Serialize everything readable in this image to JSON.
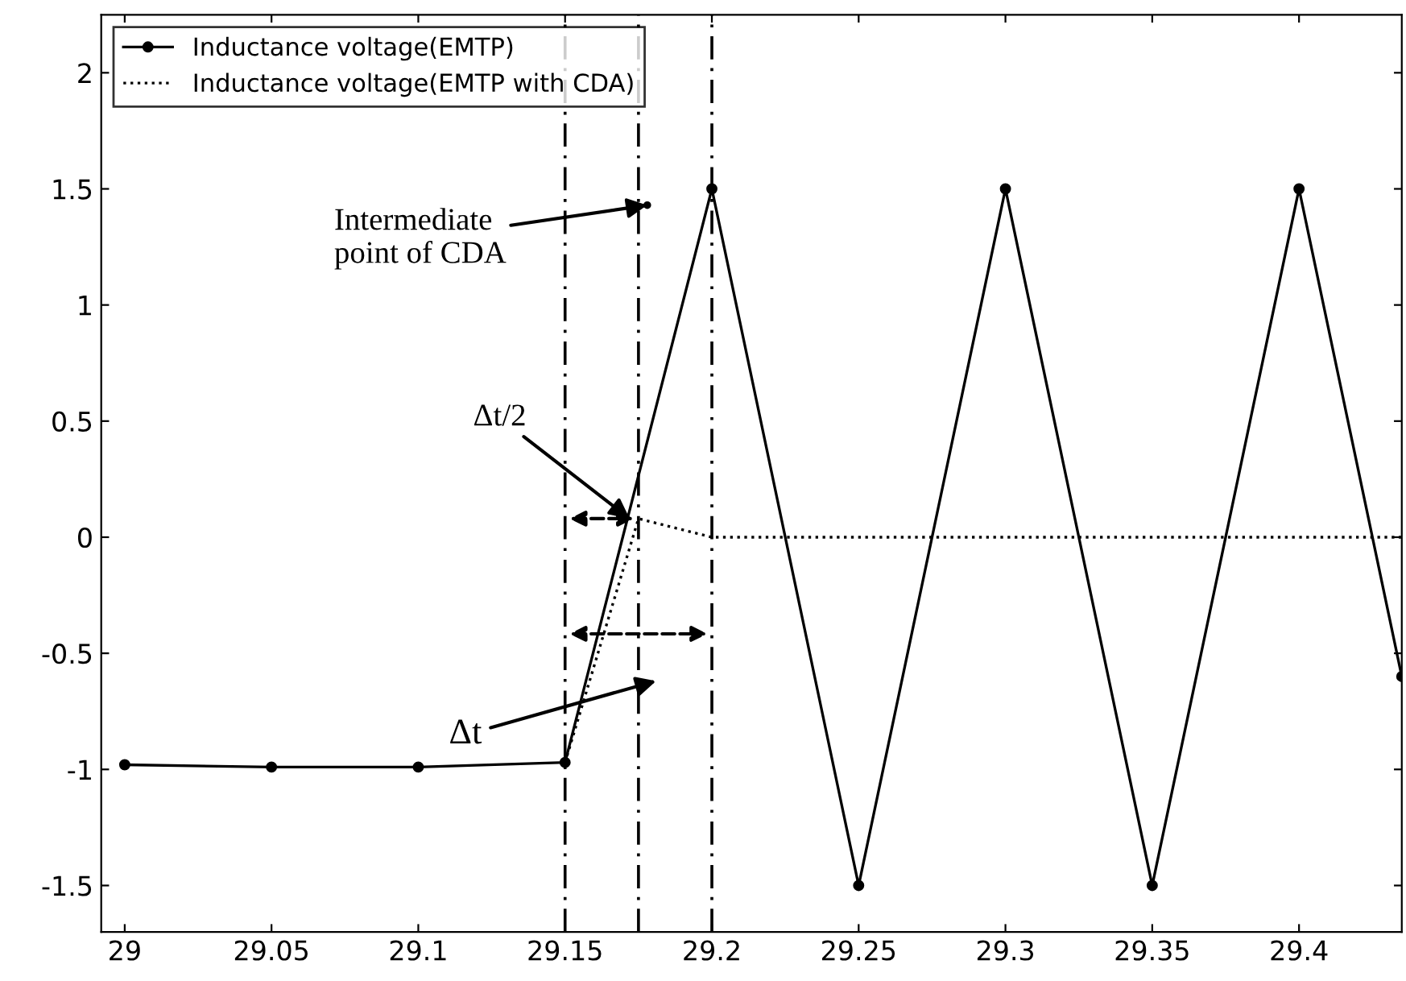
{
  "chart_data": {
    "type": "line",
    "xlim": [
      28.992,
      29.435
    ],
    "ylim": [
      -1.7,
      2.25
    ],
    "xticks": [
      29,
      29.05,
      29.1,
      29.15,
      29.2,
      29.25,
      29.3,
      29.35,
      29.4
    ],
    "yticks": [
      -1.5,
      -1,
      -0.5,
      0,
      0.5,
      1,
      1.5,
      2
    ],
    "grid": false,
    "legend": "top left",
    "series": [
      {
        "name": "Inductance voltage(EMTP)",
        "color": "#000000",
        "marker": "circle",
        "line_style": "solid",
        "x": [
          29,
          29.05,
          29.1,
          29.15,
          29.2,
          29.25,
          29.3,
          29.35,
          29.4,
          29.435
        ],
        "values": [
          -0.98,
          -0.99,
          -0.99,
          -0.97,
          1.5,
          -1.5,
          1.5,
          -1.5,
          1.5,
          -0.6
        ]
      },
      {
        "name": "Inductance voltage(EMTP with CDA)",
        "color": "#000000",
        "marker": "none",
        "line_style": "dotted",
        "x": [
          29.15,
          29.175,
          29.2,
          29.25,
          29.3,
          29.35,
          29.4,
          29.435
        ],
        "values": [
          -0.97,
          0.08,
          0,
          0,
          0,
          0,
          0,
          0
        ]
      },
      {
        "type": "scatter",
        "color": "#000000",
        "marker": "circle",
        "x": [
          29.178
        ],
        "values": [
          1.43
        ]
      }
    ],
    "ref_lines": [
      {
        "axis": "x",
        "value": 29.15,
        "line_style": "dashed"
      },
      {
        "axis": "x",
        "value": 29.2,
        "line_style": "dashed"
      },
      {
        "axis": "x",
        "value": 29.175,
        "line_style": "dashed"
      }
    ],
    "annotations": [
      {
        "text": "Intermediate\npoint of CDA",
        "x": 29.178,
        "y": 1.43
      },
      {
        "text": "Δt/2",
        "x": 29.172,
        "y": 0.08
      },
      "Δt"
    ]
  }
}
